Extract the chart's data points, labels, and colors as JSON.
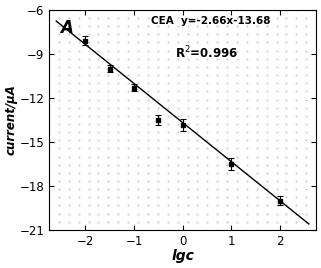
{
  "title_label": "A",
  "equation_line1": "CEA  y=-2.66x-13.68",
  "equation_line2": "R$^{2}$=0.996",
  "xlabel": "lgc",
  "ylabel": "current/μA",
  "xlim": [
    -2.75,
    2.75
  ],
  "ylim": [
    -21,
    -6
  ],
  "xticks": [
    -2,
    -1,
    0,
    1,
    2
  ],
  "yticks": [
    -21,
    -18,
    -15,
    -12,
    -9,
    -6
  ],
  "x_data": [
    -2.0,
    -1.5,
    -1.0,
    -0.5,
    0.0,
    1.0,
    2.0
  ],
  "y_data": [
    -8.1,
    -10.0,
    -11.3,
    -13.5,
    -13.85,
    -16.5,
    -19.0
  ],
  "y_err": [
    0.3,
    0.25,
    0.25,
    0.35,
    0.4,
    0.4,
    0.3
  ],
  "slope": -2.66,
  "intercept": -13.68,
  "line_x": [
    -2.6,
    2.6
  ],
  "background_color": "#ffffff",
  "plot_bg_color": "#ffffff",
  "dot_color": "#bbbbbb",
  "marker_color": "black",
  "line_color": "black",
  "text_color": "black",
  "fig_width": 3.21,
  "fig_height": 2.68,
  "dpi": 100
}
